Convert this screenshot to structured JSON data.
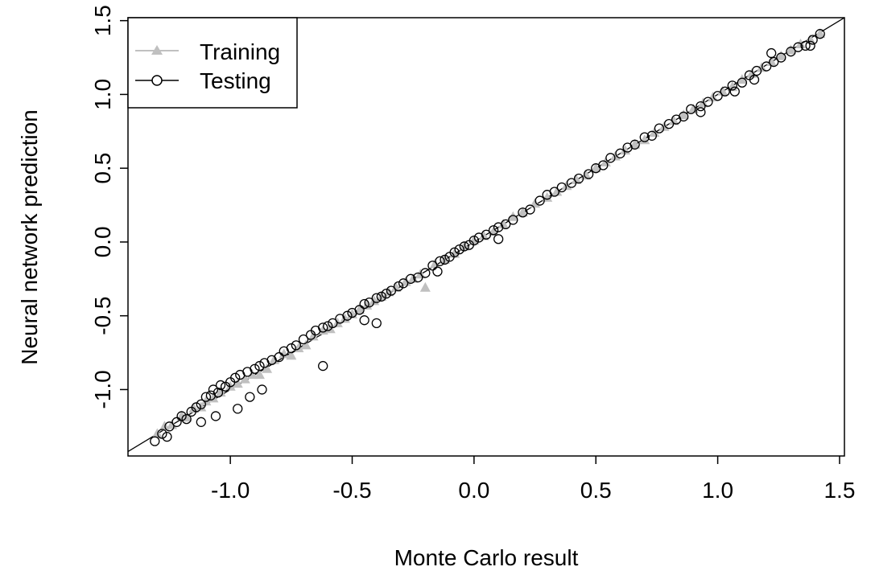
{
  "chart_data": {
    "type": "scatter",
    "xlabel": "Monte Carlo result",
    "ylabel": "Neural network prediction",
    "xlim": [
      -1.42,
      1.52
    ],
    "ylim": [
      -1.45,
      1.52
    ],
    "x_ticks": [
      {
        "value": -1.0,
        "label": "-1.0"
      },
      {
        "value": -0.5,
        "label": "-0.5"
      },
      {
        "value": 0.0,
        "label": "0.0"
      },
      {
        "value": 0.5,
        "label": "0.5"
      },
      {
        "value": 1.0,
        "label": "1.0"
      },
      {
        "value": 1.5,
        "label": "1.5"
      }
    ],
    "y_ticks": [
      {
        "value": -1.0,
        "label": "-1.0"
      },
      {
        "value": -0.5,
        "label": "-0.5"
      },
      {
        "value": 0.0,
        "label": "0.0"
      },
      {
        "value": 0.5,
        "label": "0.5"
      },
      {
        "value": 1.0,
        "label": "1.0"
      },
      {
        "value": 1.5,
        "label": "1.5"
      }
    ],
    "reference_line": {
      "slope": 1,
      "intercept": 0,
      "color": "#000000"
    },
    "grid": false,
    "legend_position": "top-left",
    "series": [
      {
        "name": "Training",
        "marker": "triangle",
        "color": "#c0c0c0",
        "x": [
          -1.3,
          -1.27,
          -1.24,
          -1.2,
          -1.18,
          -1.15,
          -1.12,
          -1.1,
          -1.07,
          -1.04,
          -1.0,
          -0.97,
          -0.94,
          -0.91,
          -0.88,
          -0.85,
          -0.82,
          -0.78,
          -0.75,
          -0.72,
          -0.69,
          -0.66,
          -0.62,
          -0.59,
          -0.56,
          -0.53,
          -0.5,
          -0.47,
          -0.44,
          -0.41,
          -0.38,
          -0.35,
          -0.32,
          -0.28,
          -0.25,
          -0.22,
          -0.2,
          -0.16,
          -0.12,
          -0.08,
          -0.04,
          0.0,
          0.04,
          0.08,
          0.12,
          0.16,
          0.2,
          0.25,
          0.3,
          0.34,
          0.38,
          0.42,
          0.46,
          0.5,
          0.54,
          0.58,
          0.62,
          0.66,
          0.7,
          0.74,
          0.78,
          0.82,
          0.86,
          0.9,
          0.94,
          0.98,
          1.02,
          1.06,
          1.1,
          1.14,
          1.18,
          1.22,
          1.26,
          1.3,
          1.34,
          1.38,
          1.42
        ],
        "y": [
          -1.3,
          -1.25,
          -1.24,
          -1.18,
          -1.19,
          -1.13,
          -1.12,
          -1.08,
          -1.06,
          -1.02,
          -0.98,
          -0.96,
          -0.93,
          -0.9,
          -0.9,
          -0.86,
          -0.8,
          -0.76,
          -0.77,
          -0.72,
          -0.7,
          -0.64,
          -0.6,
          -0.59,
          -0.55,
          -0.52,
          -0.49,
          -0.46,
          -0.43,
          -0.4,
          -0.37,
          -0.34,
          -0.31,
          -0.27,
          -0.25,
          -0.22,
          -0.31,
          -0.15,
          -0.12,
          -0.08,
          -0.03,
          0.01,
          0.04,
          0.07,
          0.12,
          0.17,
          0.2,
          0.26,
          0.3,
          0.34,
          0.38,
          0.42,
          0.45,
          0.5,
          0.54,
          0.58,
          0.62,
          0.66,
          0.69,
          0.74,
          0.78,
          0.82,
          0.86,
          0.9,
          0.94,
          0.98,
          1.02,
          1.05,
          1.1,
          1.14,
          1.18,
          1.22,
          1.26,
          1.3,
          1.34,
          1.37,
          1.41
        ]
      },
      {
        "name": "Testing",
        "marker": "circle",
        "color": "#000000",
        "x": [
          -1.31,
          -1.28,
          -1.26,
          -1.25,
          -1.22,
          -1.2,
          -1.18,
          -1.16,
          -1.14,
          -1.12,
          -1.1,
          -1.08,
          -1.07,
          -1.05,
          -1.04,
          -1.02,
          -1.0,
          -0.98,
          -0.96,
          -0.93,
          -0.9,
          -0.88,
          -0.86,
          -0.83,
          -0.8,
          -0.78,
          -0.75,
          -0.73,
          -0.7,
          -0.67,
          -0.65,
          -0.62,
          -0.6,
          -0.58,
          -0.55,
          -0.52,
          -0.5,
          -0.47,
          -0.45,
          -0.43,
          -0.4,
          -0.38,
          -0.36,
          -0.34,
          -0.31,
          -0.29,
          -0.26,
          -0.23,
          -0.2,
          -0.17,
          -0.14,
          -0.12,
          -0.1,
          -0.08,
          -0.06,
          -0.04,
          -0.02,
          0.0,
          0.02,
          0.05,
          0.08,
          0.1,
          0.13,
          0.16,
          0.2,
          0.23,
          0.27,
          0.3,
          0.33,
          0.36,
          0.4,
          0.43,
          0.47,
          0.5,
          0.53,
          0.56,
          0.6,
          0.63,
          0.66,
          0.7,
          0.73,
          0.76,
          0.8,
          0.83,
          0.86,
          0.89,
          0.93,
          0.96,
          1.0,
          1.03,
          1.06,
          1.1,
          1.13,
          1.16,
          1.2,
          1.23,
          1.26,
          1.3,
          1.33,
          1.36,
          1.39,
          1.42,
          -1.12,
          -1.06,
          -0.97,
          -0.92,
          -0.87,
          -0.62,
          -0.45,
          -0.4,
          -0.15,
          0.1,
          0.93,
          1.07,
          1.15,
          1.22,
          1.38
        ],
        "y": [
          -1.35,
          -1.3,
          -1.32,
          -1.25,
          -1.22,
          -1.18,
          -1.2,
          -1.15,
          -1.12,
          -1.1,
          -1.05,
          -1.04,
          -1.0,
          -1.02,
          -0.97,
          -0.98,
          -0.95,
          -0.92,
          -0.9,
          -0.88,
          -0.86,
          -0.84,
          -0.82,
          -0.8,
          -0.78,
          -0.74,
          -0.72,
          -0.7,
          -0.66,
          -0.63,
          -0.6,
          -0.58,
          -0.57,
          -0.55,
          -0.52,
          -0.5,
          -0.48,
          -0.46,
          -0.42,
          -0.41,
          -0.38,
          -0.37,
          -0.35,
          -0.33,
          -0.3,
          -0.28,
          -0.25,
          -0.24,
          -0.21,
          -0.16,
          -0.13,
          -0.12,
          -0.1,
          -0.07,
          -0.05,
          -0.03,
          -0.02,
          0.01,
          0.03,
          0.05,
          0.08,
          0.1,
          0.12,
          0.15,
          0.2,
          0.22,
          0.28,
          0.32,
          0.34,
          0.37,
          0.4,
          0.43,
          0.46,
          0.5,
          0.52,
          0.57,
          0.6,
          0.64,
          0.66,
          0.71,
          0.72,
          0.77,
          0.8,
          0.83,
          0.85,
          0.9,
          0.92,
          0.95,
          0.99,
          1.02,
          1.06,
          1.08,
          1.13,
          1.16,
          1.19,
          1.22,
          1.25,
          1.29,
          1.32,
          1.33,
          1.37,
          1.41,
          -1.22,
          -1.18,
          -1.13,
          -1.05,
          -1.0,
          -0.84,
          -0.53,
          -0.55,
          -0.2,
          0.02,
          0.88,
          1.02,
          1.1,
          1.28,
          1.33
        ]
      }
    ]
  }
}
